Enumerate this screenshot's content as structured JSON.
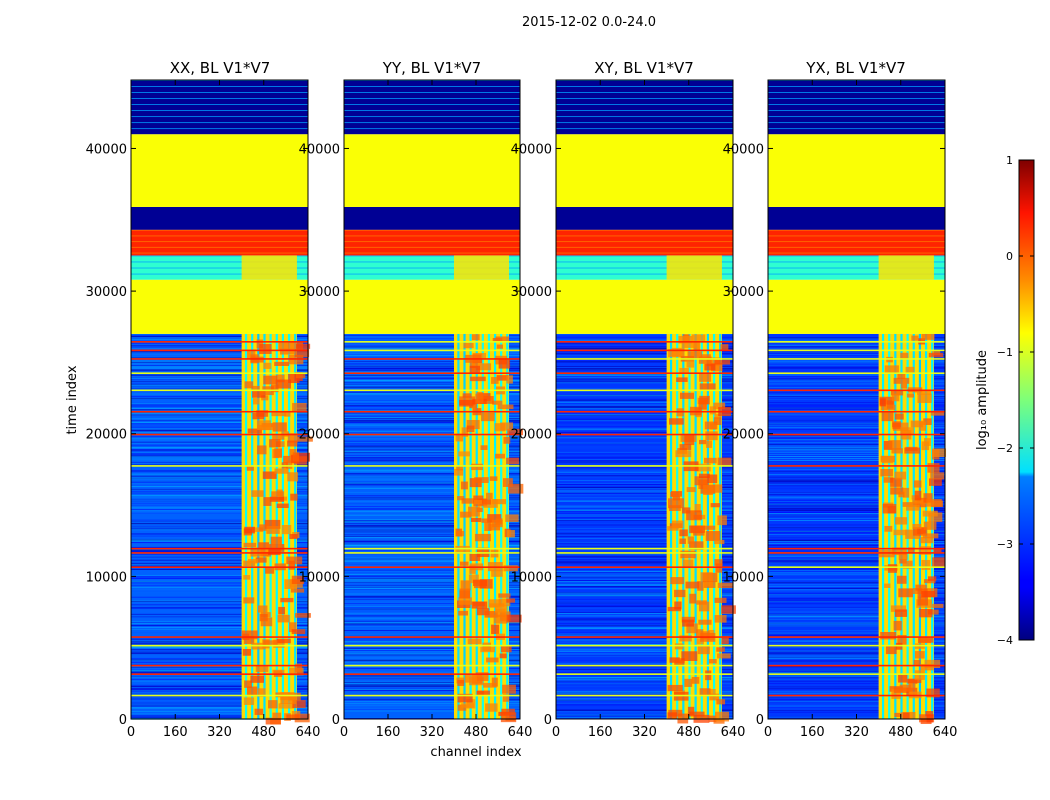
{
  "figure": {
    "suptitle": "2015-12-02 0.0-24.0",
    "xlabel": "channel index",
    "ylabel": "time index"
  },
  "chart_data": {
    "type": "heatmap",
    "panels": [
      {
        "title": "XX, BL V1*V7",
        "pol": "XX"
      },
      {
        "title": "YY, BL V1*V7",
        "pol": "YY"
      },
      {
        "title": "XY, BL V1*V7",
        "pol": "XY"
      },
      {
        "title": "YX, BL V1*V7",
        "pol": "YX"
      }
    ],
    "x": {
      "label": "channel index",
      "range": [
        0,
        640
      ],
      "ticks": [
        0,
        160,
        320,
        480,
        640
      ]
    },
    "y": {
      "label": "time index",
      "range": [
        0,
        44800
      ],
      "ticks": [
        0,
        10000,
        20000,
        30000,
        40000
      ]
    },
    "colorbar": {
      "label": "log₁₀ amplitude",
      "range": [
        -4,
        1
      ],
      "ticks": [
        1,
        0,
        -1,
        -2,
        -3,
        -4
      ],
      "tick_labels": [
        "1",
        "0",
        "−1",
        "−2",
        "−3",
        "−4"
      ],
      "colormap": "jet"
    },
    "rfi_channel_range": [
      400,
      600
    ],
    "bands": [
      {
        "from": 27000,
        "to": 30800,
        "value": -0.9,
        "note": "flagged / constant"
      },
      {
        "from": 30800,
        "to": 32500,
        "value": -1.9,
        "note": "striped low"
      },
      {
        "from": 32500,
        "to": 34300,
        "value": 0.2,
        "note": "striped high"
      },
      {
        "from": 34300,
        "to": 35900,
        "value": -3.9,
        "note": "very low"
      },
      {
        "from": 35900,
        "to": 41000,
        "value": -0.9,
        "note": "flagged / constant"
      },
      {
        "from": 41000,
        "to": 44800,
        "value": -3.9,
        "note": "striped very low"
      }
    ],
    "horizontal_lines": [
      1700,
      3200,
      3800,
      5200,
      5800,
      10700,
      11700,
      12000,
      17800,
      20000,
      21600,
      23100,
      24300,
      25300,
      25900,
      26500
    ]
  },
  "colors": {
    "jet_low": "#00007f",
    "jet_high": "#7f0000",
    "flag_green": "#99ff55"
  }
}
